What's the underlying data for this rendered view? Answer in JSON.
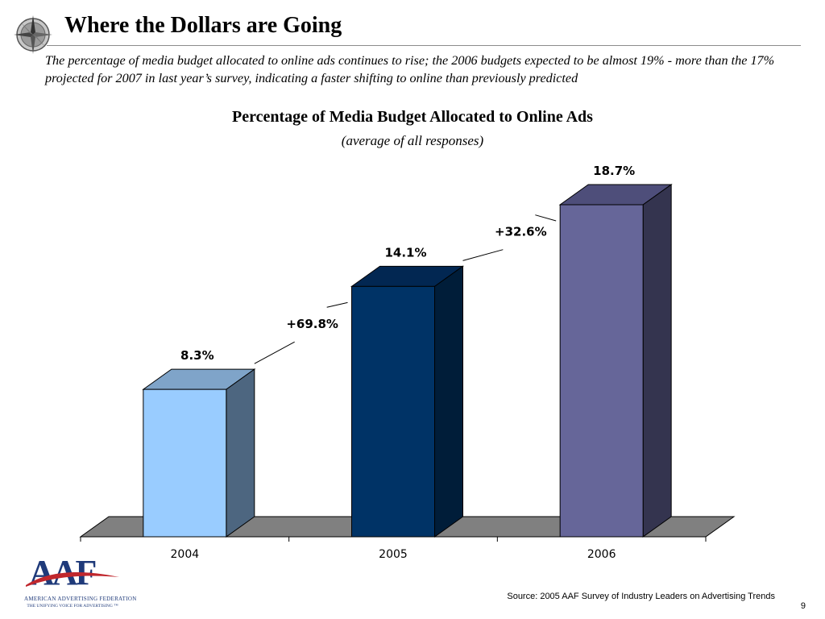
{
  "slide": {
    "title": "Where the Dollars are Going",
    "subtitle": "The percentage of  media budget allocated to online ads continues to rise; the 2006 budgets expected to be almost 19% - more than the 17% projected for 2007 in last year’s survey, indicating a faster shifting to online than previously predicted",
    "source": "Source: 2005 AAF Survey of Industry Leaders on Advertising Trends",
    "page_number": "9",
    "logo": {
      "letters": "AAF",
      "name": "American Advertising Federation",
      "tagline": "The Unifying Voice For Advertising ™"
    }
  },
  "chart_data": {
    "type": "bar",
    "title": "Percentage of Media Budget Allocated to Online Ads",
    "subtitle": "(average of  all responses)",
    "categories": [
      "2004",
      "2005",
      "2006"
    ],
    "values": [
      8.3,
      14.1,
      18.7
    ],
    "value_labels": [
      "8.3%",
      "14.1%",
      "18.7%"
    ],
    "growth_labels": [
      "+69.8%",
      "+32.6%"
    ],
    "ylim": [
      0,
      18.7
    ],
    "grid": false,
    "legend": "none",
    "three_d": true,
    "colors": {
      "bars": [
        {
          "front": "#99ccff",
          "top": "#7fa4c9",
          "side": "#4d6680"
        },
        {
          "front": "#003366",
          "top": "#022752",
          "side": "#001d39"
        },
        {
          "front": "#666699",
          "top": "#4e4e7a",
          "side": "#34344f"
        }
      ],
      "floor": "#808080",
      "axis": "#000000"
    }
  }
}
